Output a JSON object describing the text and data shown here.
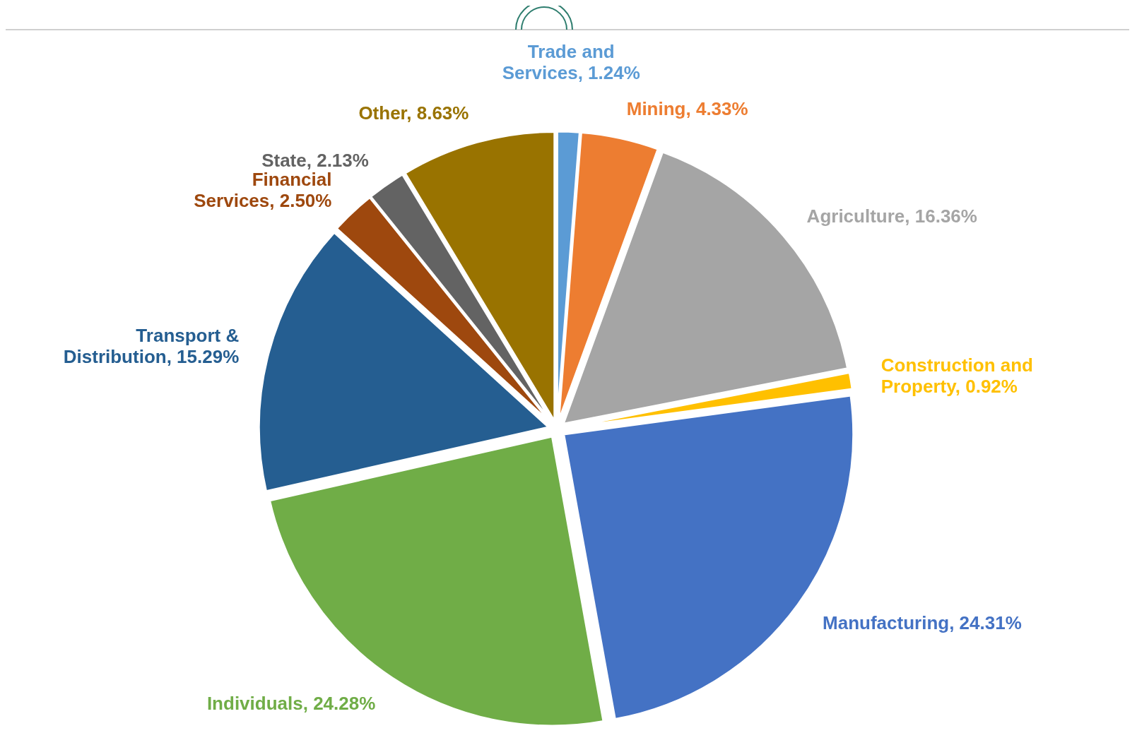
{
  "chart_data": {
    "type": "pie",
    "categories": [
      "Trade and Services",
      "Mining",
      "Agriculture",
      "Construction and Property",
      "Manufacturing",
      "Individuals",
      "Transport & Distribution",
      "Financial Services",
      "State",
      "Other"
    ],
    "value_labels": [
      "1.24%",
      "4.33%",
      "16.36%",
      "0.92%",
      "24.31%",
      "24.28%",
      "15.29%",
      "2.50%",
      "2.13%",
      "8.63%"
    ],
    "values": [
      1.24,
      4.33,
      16.36,
      0.92,
      24.31,
      24.28,
      15.29,
      2.5,
      2.13,
      8.63
    ],
    "colors": [
      "#5b9bd5",
      "#ed7d31",
      "#a5a5a5",
      "#ffc000",
      "#4472c4",
      "#70ad47",
      "#255e91",
      "#9e480e",
      "#636363",
      "#997300"
    ],
    "data_labels": false
  }
}
